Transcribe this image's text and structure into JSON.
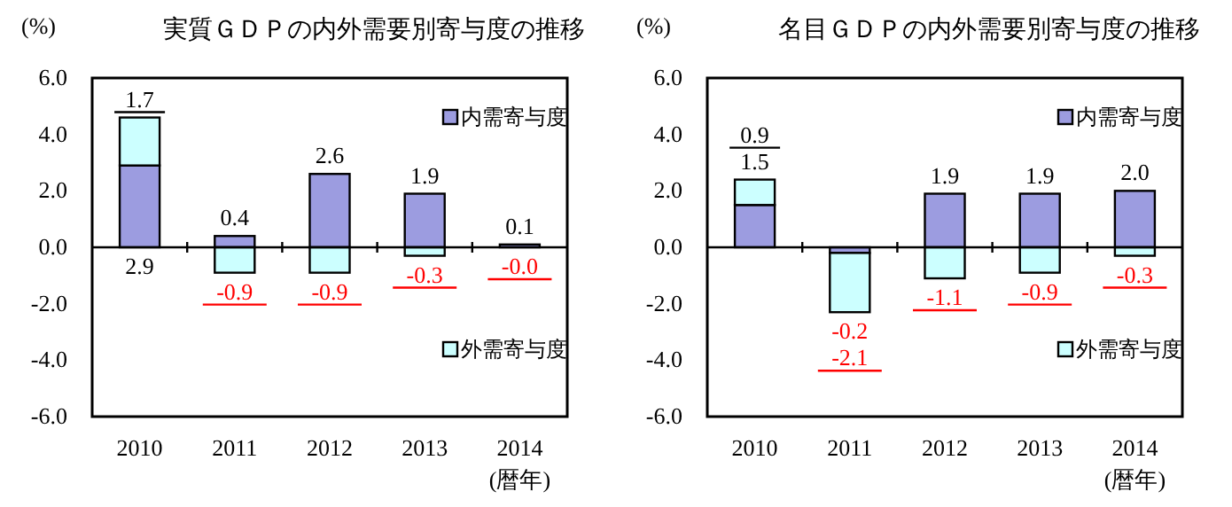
{
  "chart_data": [
    {
      "type": "bar",
      "stacked": true,
      "title": "実質ＧＤＰの内外需要別寄与度の推移",
      "ylabel": "(%)",
      "xlabel": "(暦年)",
      "categories": [
        "2010",
        "2011",
        "2012",
        "2013",
        "2014"
      ],
      "series": [
        {
          "name": "内需寄与度",
          "color": "#9c9ce0",
          "values": [
            2.9,
            0.4,
            2.6,
            1.9,
            0.1
          ],
          "value_labels": [
            "2.9",
            "0.4",
            "2.6",
            "1.9",
            "0.1"
          ]
        },
        {
          "name": "外需寄与度",
          "color": "#ccffff",
          "values": [
            1.7,
            -0.9,
            -0.9,
            -0.3,
            -0.0
          ],
          "value_labels": [
            "1.7",
            "-0.9",
            "-0.9",
            "-0.3",
            "-0.0"
          ]
        }
      ],
      "ylim": [
        -6,
        6
      ],
      "yticks": [
        {
          "value": 6,
          "label": "6.0"
        },
        {
          "value": 4,
          "label": "4.0"
        },
        {
          "value": 2,
          "label": "2.0"
        },
        {
          "value": 0,
          "label": "0.0"
        },
        {
          "value": -2,
          "label": "-2.0"
        },
        {
          "value": -4,
          "label": "-4.0"
        },
        {
          "value": -6,
          "label": "-6.0"
        }
      ],
      "legend": "right"
    },
    {
      "type": "bar",
      "stacked": true,
      "title": "名目ＧＤＰの内外需要別寄与度の推移",
      "ylabel": "(%)",
      "xlabel": "(暦年)",
      "categories": [
        "2010",
        "2011",
        "2012",
        "2013",
        "2014"
      ],
      "series": [
        {
          "name": "内需寄与度",
          "color": "#9c9ce0",
          "values": [
            1.5,
            -0.2,
            1.9,
            1.9,
            2.0
          ],
          "value_labels": [
            "1.5",
            "-0.2",
            "1.9",
            "1.9",
            "2.0"
          ]
        },
        {
          "name": "外需寄与度",
          "color": "#ccffff",
          "values": [
            0.9,
            -2.1,
            -1.1,
            -0.9,
            -0.3
          ],
          "value_labels": [
            "0.9",
            "-2.1",
            "-1.1",
            "-0.9",
            "-0.3"
          ]
        }
      ],
      "ylim": [
        -6,
        6
      ],
      "yticks": [
        {
          "value": 6,
          "label": "6.0"
        },
        {
          "value": 4,
          "label": "4.0"
        },
        {
          "value": 2,
          "label": "2.0"
        },
        {
          "value": 0,
          "label": "0.0"
        },
        {
          "value": -2,
          "label": "-2.0"
        },
        {
          "value": -4,
          "label": "-4.0"
        },
        {
          "value": -6,
          "label": "-6.0"
        }
      ],
      "legend": "right"
    }
  ]
}
